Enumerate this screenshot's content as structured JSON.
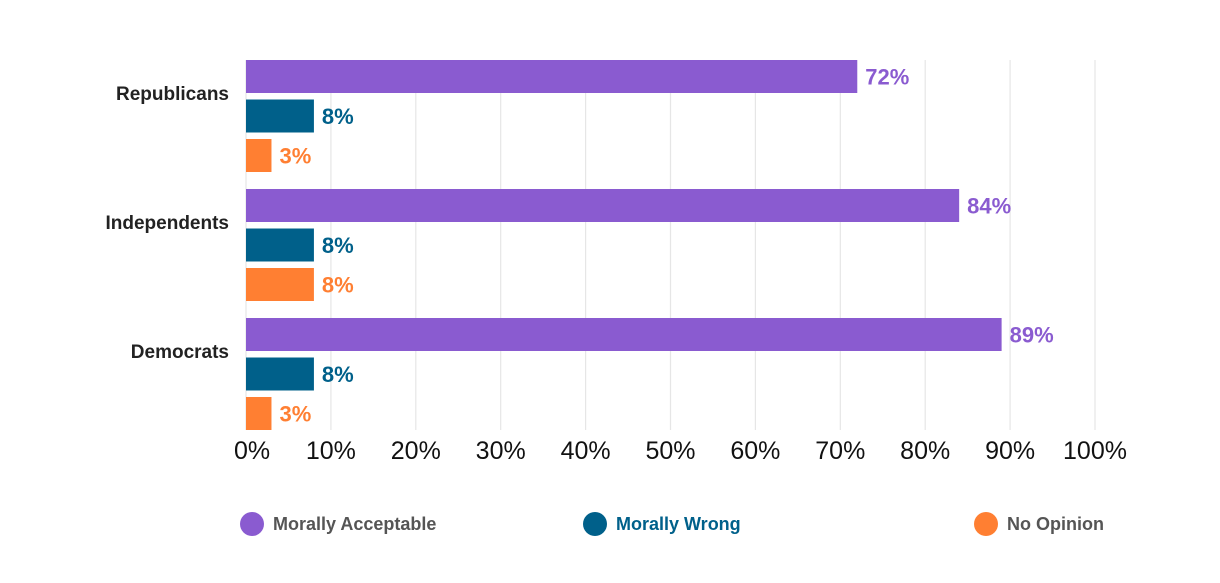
{
  "chart_data": {
    "type": "bar",
    "orientation": "horizontal",
    "categories": [
      "Republicans",
      "Independents",
      "Democrats"
    ],
    "series": [
      {
        "name": "Morally Acceptable",
        "color": "#8a5bd0",
        "values": [
          72,
          84,
          89
        ],
        "labels": [
          "72%",
          "84%",
          "89%"
        ]
      },
      {
        "name": "Morally Wrong",
        "color": "#00608a",
        "values": [
          8,
          8,
          8
        ],
        "labels": [
          "8%",
          "8%",
          "8%"
        ]
      },
      {
        "name": "No Opinion",
        "color": "#ff7f32",
        "values": [
          3,
          8,
          3
        ],
        "labels": [
          "3%",
          "8%",
          "3%"
        ]
      }
    ],
    "xlim": [
      0,
      100
    ],
    "xticks": [
      0,
      10,
      20,
      30,
      40,
      50,
      60,
      70,
      80,
      90,
      100
    ],
    "xtick_labels": [
      "0%",
      "10%",
      "20%",
      "30%",
      "40%",
      "50%",
      "60%",
      "70%",
      "80%",
      "90%",
      "100%"
    ],
    "grid": "vertical",
    "grid_color": "#e6e6e6",
    "legend_placement": "bottom"
  }
}
